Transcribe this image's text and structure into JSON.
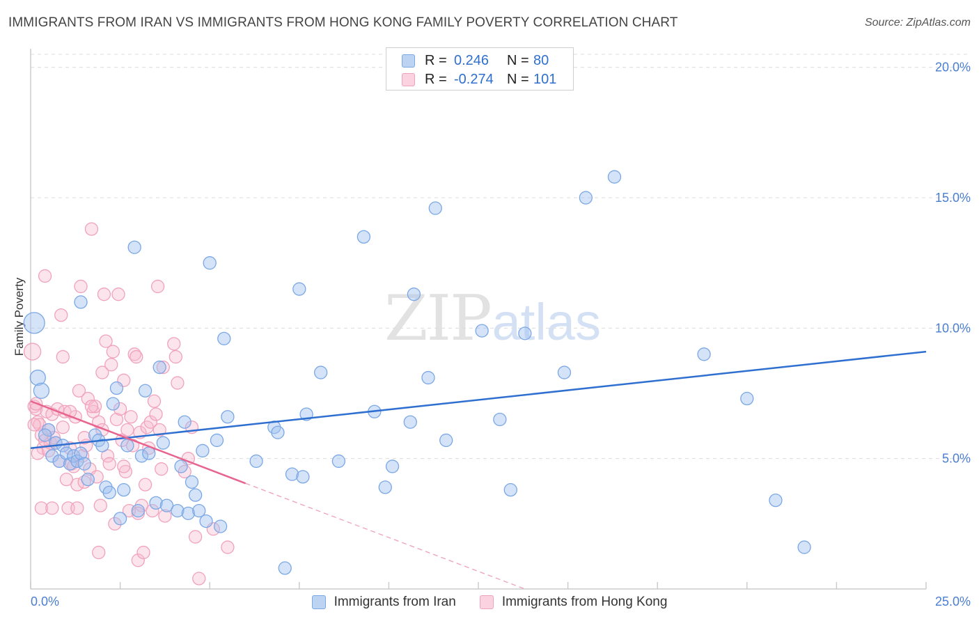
{
  "title": "IMMIGRANTS FROM IRAN VS IMMIGRANTS FROM HONG KONG FAMILY POVERTY CORRELATION CHART",
  "source": "Source: ZipAtlas.com",
  "watermark": {
    "zip": "ZIP",
    "atlas": "atlas"
  },
  "stats": [
    {
      "r_label": "R =",
      "r_value": "0.246",
      "n_label": "N =",
      "n_value": "80",
      "color": "#7aa7e6",
      "fill": "#bcd3f2"
    },
    {
      "r_label": "R =",
      "r_value": "-0.274",
      "n_label": "N =",
      "n_value": "101",
      "color": "#f1a2bb",
      "fill": "#fbd2df"
    }
  ],
  "legend": [
    {
      "label": "Immigrants from Iran",
      "color": "#7aa7e6",
      "fill": "#bcd3f2"
    },
    {
      "label": "Immigrants from Hong Kong",
      "color": "#f1a2bb",
      "fill": "#fbd2df"
    }
  ],
  "chart_data": {
    "type": "scatter",
    "title": "IMMIGRANTS FROM IRAN VS IMMIGRANTS FROM HONG KONG FAMILY POVERTY CORRELATION CHART",
    "xlabel": "",
    "ylabel": "Family Poverty",
    "xlim": [
      0,
      25
    ],
    "ylim": [
      0,
      20.5
    ],
    "x_tick_labels": [
      "0.0%",
      "25.0%"
    ],
    "y_ticks": [
      5,
      10,
      15,
      20
    ],
    "y_tick_labels": [
      "5.0%",
      "10.0%",
      "15.0%",
      "20.0%"
    ],
    "grid": true,
    "series": [
      {
        "name": "Immigrants from Iran",
        "color": "#4a87e0",
        "trend": {
          "x": [
            0,
            25
          ],
          "y": [
            5.4,
            9.1
          ]
        },
        "points": [
          [
            0.1,
            10.2
          ],
          [
            0.2,
            8.1
          ],
          [
            0.3,
            7.6
          ],
          [
            0.5,
            6.1
          ],
          [
            0.4,
            5.9
          ],
          [
            0.6,
            5.1
          ],
          [
            0.7,
            5.6
          ],
          [
            0.8,
            4.9
          ],
          [
            0.9,
            5.5
          ],
          [
            1.0,
            5.2
          ],
          [
            1.1,
            4.8
          ],
          [
            1.2,
            5.1
          ],
          [
            1.3,
            4.9
          ],
          [
            1.4,
            5.2
          ],
          [
            1.5,
            4.8
          ],
          [
            1.4,
            11.0
          ],
          [
            1.6,
            4.2
          ],
          [
            1.8,
            5.9
          ],
          [
            1.9,
            5.7
          ],
          [
            2.0,
            5.5
          ],
          [
            2.1,
            3.9
          ],
          [
            2.2,
            3.7
          ],
          [
            2.3,
            7.1
          ],
          [
            2.4,
            7.7
          ],
          [
            2.5,
            2.7
          ],
          [
            2.6,
            3.8
          ],
          [
            2.7,
            5.5
          ],
          [
            2.9,
            13.1
          ],
          [
            3.0,
            3.0
          ],
          [
            3.1,
            5.1
          ],
          [
            3.2,
            7.6
          ],
          [
            3.3,
            5.2
          ],
          [
            3.5,
            3.3
          ],
          [
            3.6,
            8.5
          ],
          [
            3.7,
            5.6
          ],
          [
            3.8,
            3.2
          ],
          [
            4.1,
            3.0
          ],
          [
            4.2,
            4.7
          ],
          [
            4.3,
            6.4
          ],
          [
            4.4,
            2.9
          ],
          [
            4.5,
            4.1
          ],
          [
            4.6,
            3.6
          ],
          [
            4.7,
            3.0
          ],
          [
            4.8,
            5.3
          ],
          [
            4.9,
            2.6
          ],
          [
            5.0,
            12.5
          ],
          [
            5.2,
            5.7
          ],
          [
            5.3,
            2.4
          ],
          [
            5.4,
            9.6
          ],
          [
            5.5,
            6.6
          ],
          [
            6.3,
            4.9
          ],
          [
            6.8,
            6.2
          ],
          [
            6.9,
            6.0
          ],
          [
            7.1,
            0.8
          ],
          [
            7.3,
            4.4
          ],
          [
            7.5,
            11.5
          ],
          [
            7.6,
            4.3
          ],
          [
            7.7,
            6.7
          ],
          [
            8.1,
            8.3
          ],
          [
            8.6,
            4.9
          ],
          [
            9.3,
            13.5
          ],
          [
            9.6,
            6.8
          ],
          [
            9.9,
            3.9
          ],
          [
            10.1,
            4.7
          ],
          [
            10.6,
            6.4
          ],
          [
            10.7,
            11.3
          ],
          [
            11.1,
            8.1
          ],
          [
            11.3,
            14.6
          ],
          [
            11.6,
            5.7
          ],
          [
            12.6,
            9.9
          ],
          [
            13.1,
            6.5
          ],
          [
            13.4,
            3.8
          ],
          [
            13.8,
            9.8
          ],
          [
            14.9,
            8.3
          ],
          [
            15.5,
            15.0
          ],
          [
            16.3,
            15.8
          ],
          [
            18.8,
            9.0
          ],
          [
            20.0,
            7.3
          ],
          [
            20.8,
            3.4
          ],
          [
            21.6,
            1.6
          ]
        ]
      },
      {
        "name": "Immigrants from Hong Kong",
        "color": "#ec6f98",
        "trend": {
          "x": [
            0,
            6.0
          ],
          "y": [
            7.2,
            4.05
          ]
        },
        "trend_dashed": {
          "x": [
            6.0,
            13.8
          ],
          "y": [
            4.05,
            0.0
          ]
        },
        "points": [
          [
            0.05,
            9.1
          ],
          [
            0.1,
            7.0
          ],
          [
            0.15,
            6.9
          ],
          [
            0.2,
            6.4
          ],
          [
            0.25,
            6.3
          ],
          [
            0.3,
            5.9
          ],
          [
            0.35,
            5.4
          ],
          [
            0.4,
            12.0
          ],
          [
            0.45,
            6.8
          ],
          [
            0.5,
            6.1
          ],
          [
            0.55,
            5.6
          ],
          [
            0.6,
            6.7
          ],
          [
            0.65,
            5.8
          ],
          [
            0.7,
            5.6
          ],
          [
            0.75,
            6.9
          ],
          [
            0.8,
            4.9
          ],
          [
            0.85,
            10.5
          ],
          [
            0.9,
            8.9
          ],
          [
            0.95,
            6.8
          ],
          [
            1.0,
            4.2
          ],
          [
            1.05,
            3.1
          ],
          [
            1.1,
            5.4
          ],
          [
            1.15,
            4.8
          ],
          [
            1.2,
            4.7
          ],
          [
            1.25,
            6.6
          ],
          [
            1.3,
            4.0
          ],
          [
            1.35,
            7.6
          ],
          [
            1.4,
            11.6
          ],
          [
            1.45,
            5.1
          ],
          [
            1.5,
            4.1
          ],
          [
            1.55,
            5.5
          ],
          [
            1.6,
            7.3
          ],
          [
            1.65,
            4.6
          ],
          [
            1.7,
            13.8
          ],
          [
            1.75,
            6.8
          ],
          [
            1.8,
            7.0
          ],
          [
            1.85,
            4.3
          ],
          [
            1.9,
            6.4
          ],
          [
            1.95,
            3.2
          ],
          [
            2.0,
            8.3
          ],
          [
            2.05,
            11.3
          ],
          [
            2.1,
            9.5
          ],
          [
            2.15,
            5.1
          ],
          [
            2.2,
            4.8
          ],
          [
            2.25,
            8.6
          ],
          [
            2.3,
            9.1
          ],
          [
            2.35,
            2.5
          ],
          [
            2.4,
            6.5
          ],
          [
            2.45,
            11.3
          ],
          [
            2.5,
            6.9
          ],
          [
            2.55,
            5.7
          ],
          [
            2.6,
            8.0
          ],
          [
            2.65,
            4.5
          ],
          [
            2.7,
            6.1
          ],
          [
            2.75,
            3.0
          ],
          [
            2.8,
            6.6
          ],
          [
            2.85,
            5.5
          ],
          [
            2.9,
            9.0
          ],
          [
            2.95,
            8.9
          ],
          [
            3.0,
            1.1
          ],
          [
            3.05,
            6.0
          ],
          [
            3.1,
            3.2
          ],
          [
            3.15,
            1.4
          ],
          [
            3.2,
            4.0
          ],
          [
            3.25,
            6.2
          ],
          [
            3.3,
            5.4
          ],
          [
            3.35,
            6.4
          ],
          [
            3.4,
            3.0
          ],
          [
            3.45,
            7.2
          ],
          [
            3.5,
            6.7
          ],
          [
            3.55,
            11.6
          ],
          [
            3.6,
            6.1
          ],
          [
            3.65,
            4.6
          ],
          [
            3.7,
            8.5
          ],
          [
            3.75,
            2.8
          ],
          [
            4.0,
            9.4
          ],
          [
            4.05,
            8.9
          ],
          [
            4.1,
            7.9
          ],
          [
            4.3,
            4.5
          ],
          [
            4.4,
            5.0
          ],
          [
            4.5,
            6.2
          ],
          [
            4.6,
            2.0
          ],
          [
            4.7,
            0.4
          ],
          [
            5.1,
            2.3
          ],
          [
            5.5,
            1.6
          ],
          [
            0.3,
            3.1
          ],
          [
            0.6,
            3.1
          ],
          [
            1.3,
            3.1
          ],
          [
            1.9,
            1.4
          ],
          [
            0.2,
            5.2
          ],
          [
            0.5,
            5.3
          ],
          [
            0.9,
            6.2
          ],
          [
            1.1,
            6.8
          ],
          [
            1.5,
            5.8
          ],
          [
            2.0,
            6.1
          ],
          [
            0.1,
            6.3
          ],
          [
            0.15,
            7.1
          ],
          [
            1.7,
            7.0
          ],
          [
            2.6,
            4.7
          ],
          [
            3.0,
            2.9
          ],
          [
            0.4,
            5.7
          ]
        ]
      }
    ]
  }
}
